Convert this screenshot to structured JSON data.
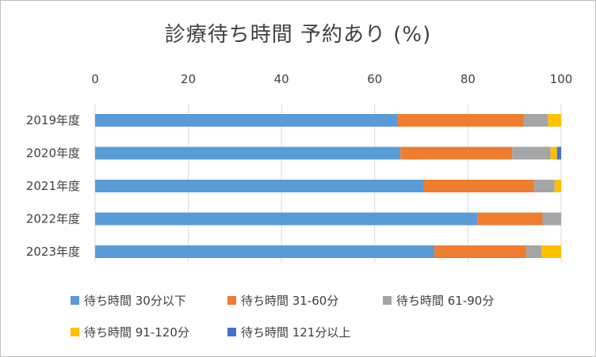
{
  "chart_data": {
    "type": "bar",
    "orientation": "horizontal",
    "stacked": true,
    "title": "診療待ち時間 予約あり (%)",
    "categories": [
      "2019年度",
      "2020年度",
      "2021年度",
      "2022年度",
      "2023年度"
    ],
    "series": [
      {
        "name": "待ち時間 30分以下",
        "color": "#5b9bd5",
        "values": [
          64.8,
          65.5,
          70.5,
          82.0,
          72.8
        ]
      },
      {
        "name": "待ち時間 31-60分",
        "color": "#ed7d31",
        "values": [
          27.2,
          24.0,
          23.7,
          14.0,
          19.7
        ]
      },
      {
        "name": "待ち時間 61-90分",
        "color": "#a5a5a5",
        "values": [
          5.2,
          8.2,
          4.4,
          4.0,
          3.3
        ]
      },
      {
        "name": "待ち時間 91-120分",
        "color": "#ffc000",
        "values": [
          2.8,
          1.4,
          1.4,
          0.0,
          4.2
        ]
      },
      {
        "name": "待ち時間 121分以上",
        "color": "#4472c4",
        "values": [
          0.0,
          0.9,
          0.0,
          0.0,
          0.0
        ]
      }
    ],
    "xlim": [
      0,
      100
    ],
    "xticks": [
      0,
      20,
      40,
      60,
      80,
      100
    ],
    "xaxis_position": "top",
    "grid": true,
    "legend_position": "bottom"
  }
}
